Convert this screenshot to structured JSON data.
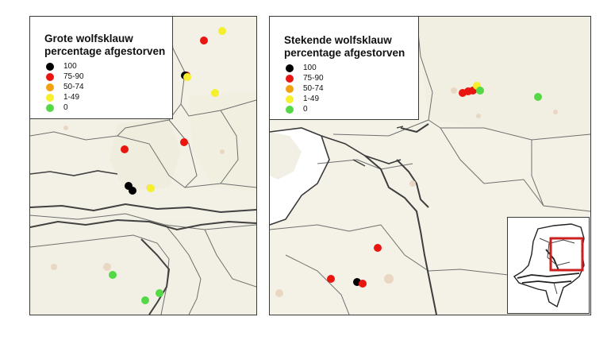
{
  "colors": {
    "100": "#000000",
    "75-90": "#e8160f",
    "50-74": "#f2a20e",
    "1-49": "#f5ef2c",
    "0": "#55d845"
  },
  "left_map": {
    "legend": {
      "title_line1": "Grote wolfsklauw",
      "title_line2": "percentage afgestorven",
      "classes": [
        {
          "label": "100",
          "class": "100"
        },
        {
          "label": "75-90",
          "class": "75-90"
        },
        {
          "label": "50-74",
          "class": "50-74"
        },
        {
          "label": "1-49",
          "class": "1-49"
        },
        {
          "label": "0",
          "class": "0"
        }
      ]
    },
    "sites": [
      {
        "class": "75-90"
      },
      {
        "class": "1-49"
      },
      {
        "class": "75-90"
      },
      {
        "class": "100"
      },
      {
        "class": "1-49"
      },
      {
        "class": "1-49"
      },
      {
        "class": "75-90"
      },
      {
        "class": "75-90"
      },
      {
        "class": "100"
      },
      {
        "class": "100"
      },
      {
        "class": "1-49"
      },
      {
        "class": "0"
      },
      {
        "class": "0"
      },
      {
        "class": "0"
      }
    ]
  },
  "right_map": {
    "legend": {
      "title_line1": "Stekende wolfsklauw",
      "title_line2": "percentage afgestorven",
      "classes": [
        {
          "label": "100",
          "class": "100"
        },
        {
          "label": "75-90",
          "class": "75-90"
        },
        {
          "label": "50-74",
          "class": "50-74"
        },
        {
          "label": "1-49",
          "class": "1-49"
        },
        {
          "label": "0",
          "class": "0"
        }
      ]
    },
    "sites": [
      {
        "class": "75-90"
      },
      {
        "class": "75-90"
      },
      {
        "class": "75-90"
      },
      {
        "class": "1-49"
      },
      {
        "class": "0"
      },
      {
        "class": "0"
      },
      {
        "class": "75-90"
      },
      {
        "class": "75-90"
      },
      {
        "class": "100"
      },
      {
        "class": "75-90"
      }
    ]
  },
  "inset": {
    "highlight_color": "#cc1f1f"
  }
}
